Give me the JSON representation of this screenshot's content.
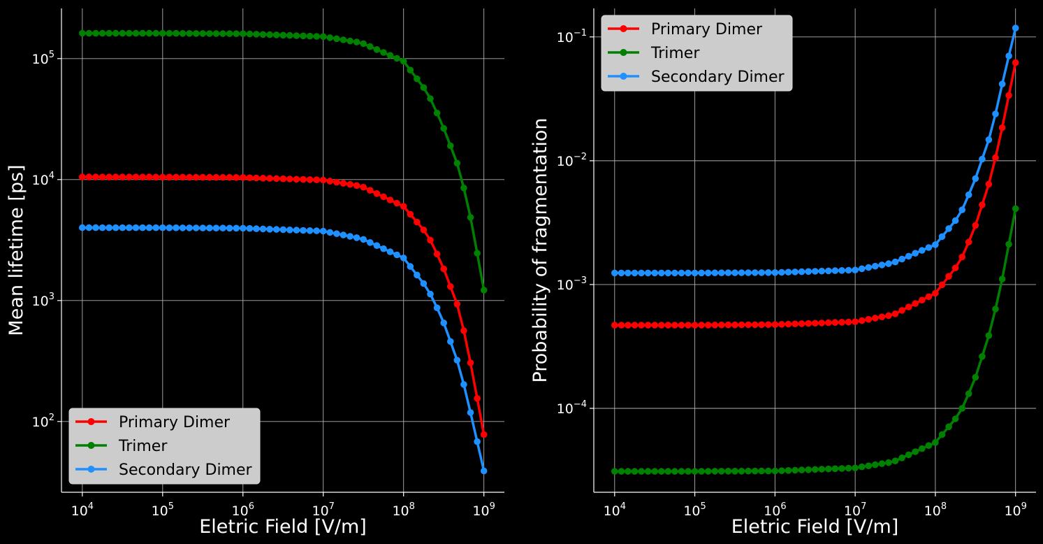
{
  "chart_data": [
    {
      "type": "line",
      "xlabel": "Eletric Field [V/m]",
      "ylabel": "Mean lifetime [ps]",
      "xscale": "log",
      "yscale": "log",
      "grid": true,
      "legend_position": "lower-left",
      "xlim": [
        5500.0,
        1800000000.0
      ],
      "ylim": [
        26,
        260000.0
      ],
      "xticks": [
        {
          "base": "10",
          "exp": "4"
        },
        {
          "base": "10",
          "exp": "5"
        },
        {
          "base": "10",
          "exp": "6"
        },
        {
          "base": "10",
          "exp": "7"
        },
        {
          "base": "10",
          "exp": "8"
        },
        {
          "base": "10",
          "exp": "9"
        }
      ],
      "yticks": [
        {
          "base": "10",
          "exp": "2"
        },
        {
          "base": "10",
          "exp": "3"
        },
        {
          "base": "10",
          "exp": "4"
        },
        {
          "base": "10",
          "exp": "5"
        }
      ],
      "series": [
        {
          "name": "Primary Dimer",
          "color": "#ff0000",
          "x": [
            10000.0,
            100000.0,
            1000000.0,
            10000000.0,
            30000000.0,
            100000000.0,
            200000000.0,
            300000000.0,
            500000000.0,
            700000000.0,
            1000000000.0
          ],
          "y": [
            10500,
            10480,
            10400,
            9900,
            8800,
            6000,
            3500,
            2000,
            820,
            280,
            78
          ]
        },
        {
          "name": "Trimer",
          "color": "#008000",
          "x": [
            10000.0,
            100000.0,
            1000000.0,
            10000000.0,
            30000000.0,
            100000000.0,
            200000000.0,
            300000000.0,
            500000000.0,
            700000000.0,
            1000000000.0
          ],
          "y": [
            162000,
            161800,
            160500,
            152000,
            135000,
            95000,
            52000,
            29000,
            12000,
            4500,
            1220
          ]
        },
        {
          "name": "Secondary Dimer",
          "color": "#1e90ff",
          "x": [
            10000.0,
            100000.0,
            1000000.0,
            10000000.0,
            30000000.0,
            100000000.0,
            200000000.0,
            300000000.0,
            500000000.0,
            700000000.0,
            1000000000.0
          ],
          "y": [
            4000,
            3995,
            3960,
            3750,
            3250,
            2250,
            1250,
            720,
            280,
            110,
            39
          ]
        }
      ]
    },
    {
      "type": "line",
      "xlabel": "Eletric Field [V/m]",
      "ylabel": "Probability of fragmentation",
      "xscale": "log",
      "yscale": "log",
      "grid": true,
      "legend_position": "upper-left",
      "xlim": [
        5500.0,
        1800000000.0
      ],
      "ylim": [
        2.1e-05,
        0.17
      ],
      "xticks": [
        {
          "base": "10",
          "exp": "4"
        },
        {
          "base": "10",
          "exp": "5"
        },
        {
          "base": "10",
          "exp": "6"
        },
        {
          "base": "10",
          "exp": "7"
        },
        {
          "base": "10",
          "exp": "8"
        },
        {
          "base": "10",
          "exp": "9"
        }
      ],
      "yticks": [
        {
          "base": "10",
          "exp": "−4"
        },
        {
          "base": "10",
          "exp": "−3"
        },
        {
          "base": "10",
          "exp": "−2"
        },
        {
          "base": "10",
          "exp": "−1"
        }
      ],
      "series": [
        {
          "name": "Primary Dimer",
          "color": "#ff0000",
          "x": [
            10000.0,
            100000.0,
            1000000.0,
            10000000.0,
            30000000.0,
            100000000.0,
            200000000.0,
            300000000.0,
            500000000.0,
            700000000.0,
            1000000000.0
          ],
          "y": [
            0.00047,
            0.00047,
            0.000475,
            0.0005,
            0.00057,
            0.00085,
            0.0015,
            0.0027,
            0.0075,
            0.02,
            0.062
          ]
        },
        {
          "name": "Trimer",
          "color": "#008000",
          "x": [
            10000.0,
            100000.0,
            1000000.0,
            10000000.0,
            30000000.0,
            100000000.0,
            200000000.0,
            300000000.0,
            500000000.0,
            700000000.0,
            1000000000.0
          ],
          "y": [
            3.1e-05,
            3.1e-05,
            3.12e-05,
            3.3e-05,
            3.7e-05,
            5.3e-05,
            9e-05,
            0.00016,
            0.00045,
            0.0012,
            0.0041
          ]
        },
        {
          "name": "Secondary Dimer",
          "color": "#1e90ff",
          "x": [
            10000.0,
            100000.0,
            1000000.0,
            10000000.0,
            30000000.0,
            100000000.0,
            200000000.0,
            300000000.0,
            500000000.0,
            700000000.0,
            1000000000.0
          ],
          "y": [
            0.00124,
            0.00124,
            0.00125,
            0.00131,
            0.0015,
            0.0021,
            0.0036,
            0.0065,
            0.017,
            0.045,
            0.118
          ]
        }
      ]
    }
  ]
}
